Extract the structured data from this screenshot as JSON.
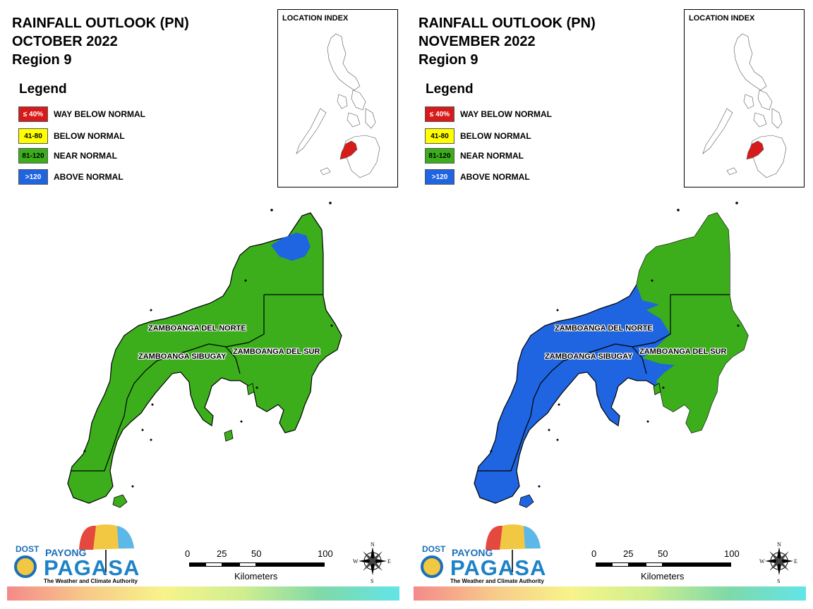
{
  "panels": [
    {
      "title_line1": "RAINFALL OUTLOOK (PN)",
      "title_line2": "OCTOBER 2022",
      "title_line3": "Region 9",
      "dominant_category": "81-120",
      "fill_colors": {
        "base": "#3cae1c",
        "secondary": "#1f64e0"
      }
    },
    {
      "title_line1": "RAINFALL OUTLOOK (PN)",
      "title_line2": "NOVEMBER 2022",
      "title_line3": "Region 9",
      "dominant_category": ">120",
      "fill_colors": {
        "base": "#1f64e0",
        "secondary": "#3cae1c"
      }
    }
  ],
  "legend": {
    "title": "Legend",
    "items": [
      {
        "range": "≤ 40%",
        "label": "WAY BELOW NORMAL",
        "color": "#d71a1a",
        "text_color": "#ffffff"
      },
      {
        "range": "41-80",
        "label": "BELOW NORMAL",
        "color": "#ffff00",
        "text_color": "#000000"
      },
      {
        "range": "81-120",
        "label": "NEAR NORMAL",
        "color": "#3cae1c",
        "text_color": "#000000"
      },
      {
        "range": ">120",
        "label": "ABOVE NORMAL",
        "color": "#1f64e0",
        "text_color": "#ffffff"
      }
    ]
  },
  "inset": {
    "title": "LOCATION INDEX",
    "highlight_color": "#d71a1a"
  },
  "provinces": {
    "norte": "ZAMBOANGA DEL NORTE",
    "sibugay": "ZAMBOANGA SIBUGAY",
    "sur": "ZAMBOANGA DEL SUR"
  },
  "logo": {
    "dost": "DOST",
    "payong": "PAYONG",
    "pagasa": "PAGASA",
    "tagline": "The Weather and Climate Authority"
  },
  "scale_bar": {
    "ticks": [
      "0",
      "25",
      "50",
      "100"
    ],
    "units": "Kilometers"
  },
  "compass": {
    "n": "N",
    "s": "S",
    "e": "E",
    "w": "W"
  }
}
